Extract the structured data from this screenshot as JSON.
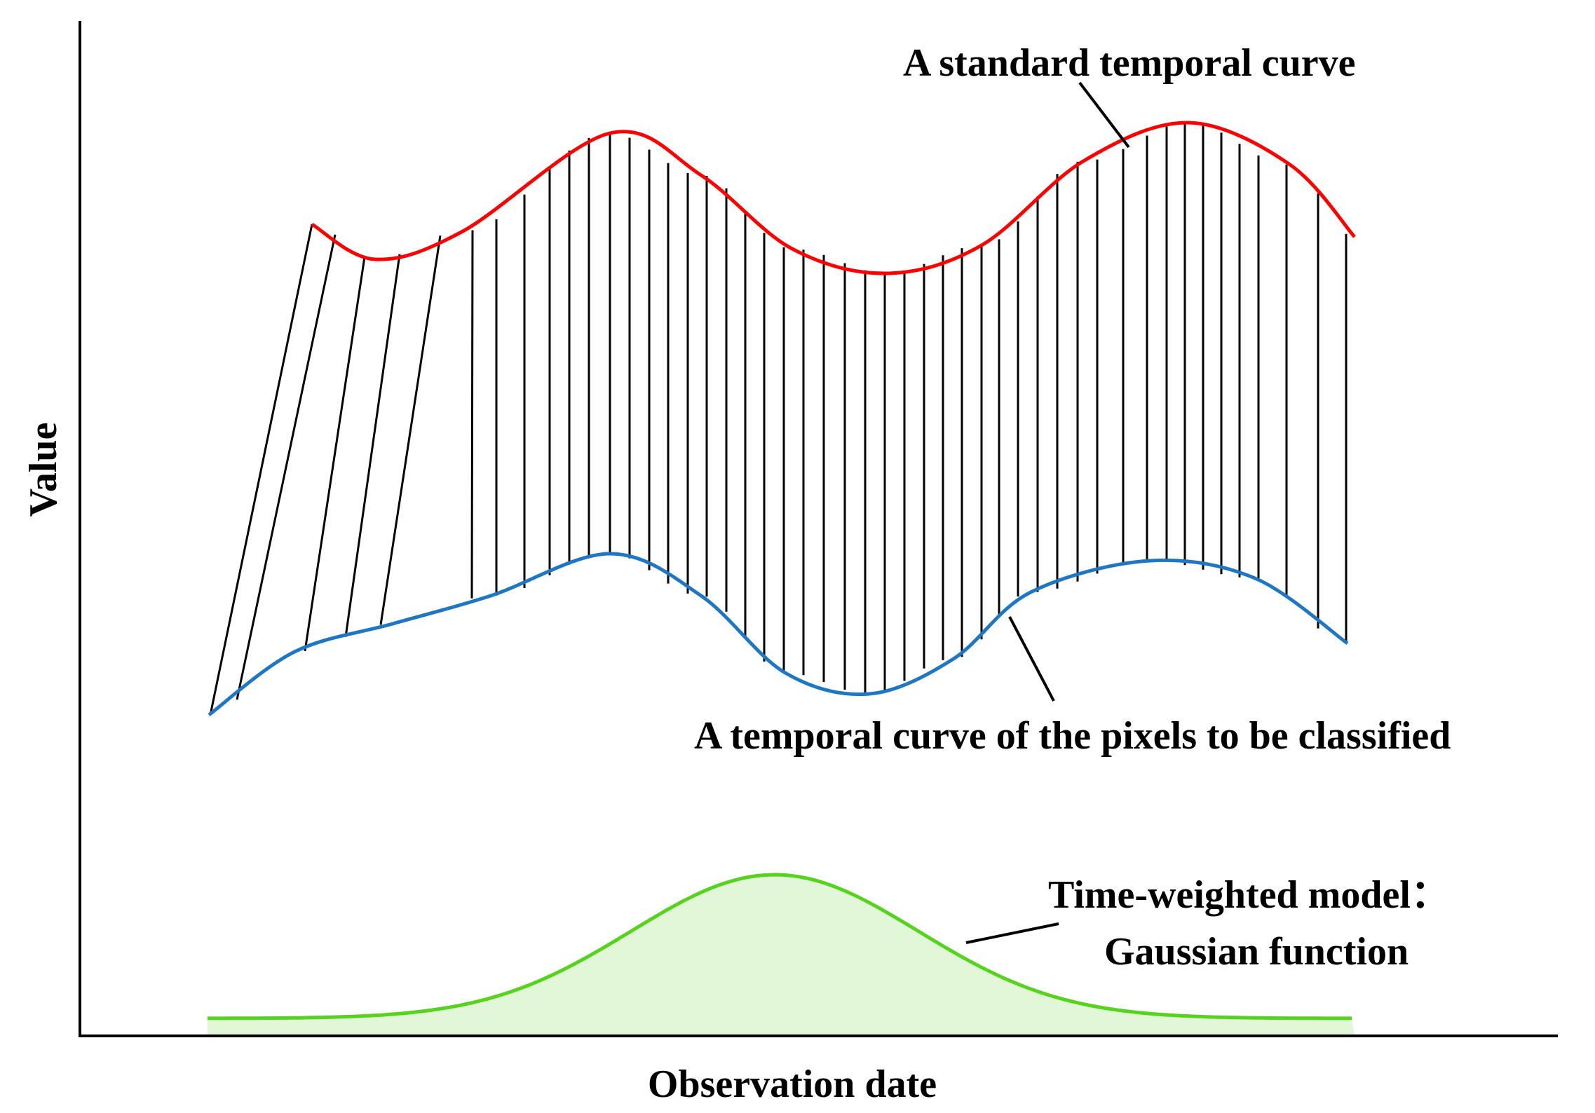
{
  "axes": {
    "x_label": "Observation date",
    "y_label": "Value"
  },
  "labels": {
    "standard_curve": "A standard temporal curve",
    "pixel_curve": "A  temporal curve of the pixels to be classified",
    "gaussian_line1": "Time-weighted model：",
    "gaussian_line2": "Gaussian function"
  },
  "colors": {
    "standard_curve": "#ff0000",
    "pixel_curve": "#1f77c4",
    "gaussian_curve": "#55d31f",
    "gaussian_fill": "#e2f6d8",
    "axis": "#000000",
    "alignment_lines": "#000000"
  }
}
